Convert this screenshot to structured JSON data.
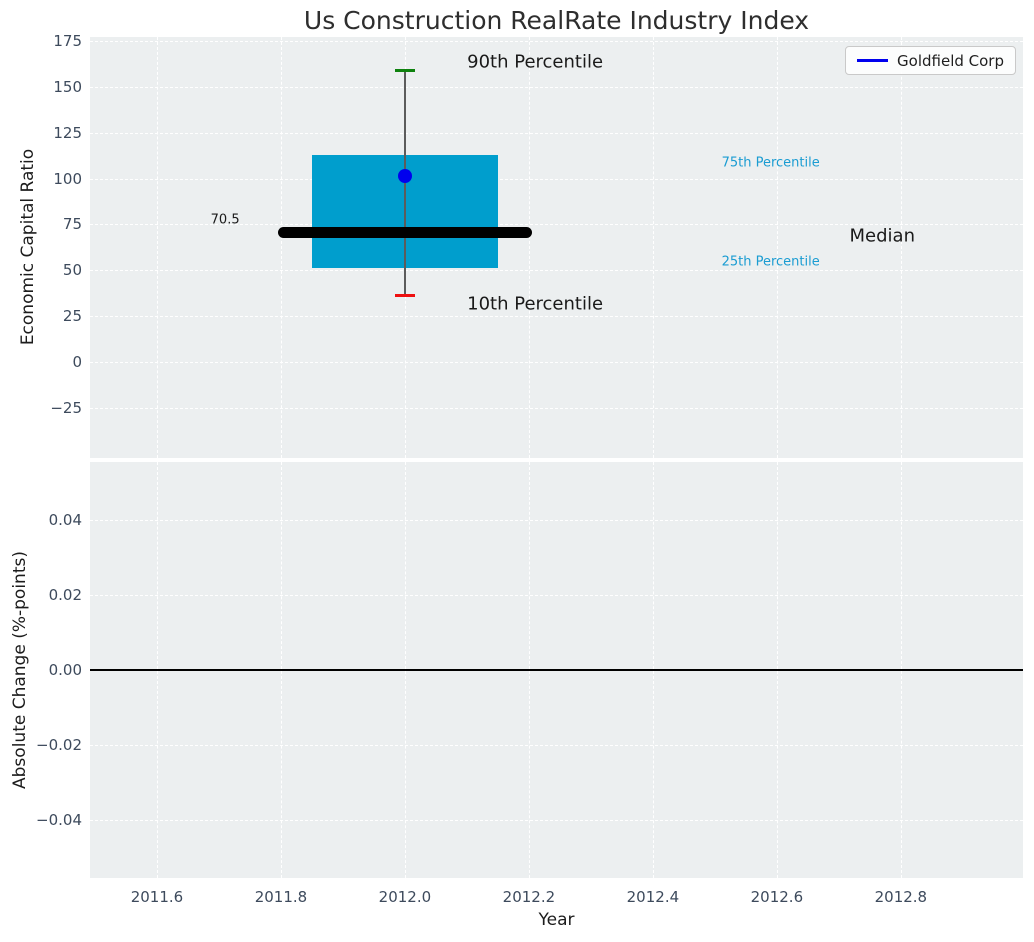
{
  "title": "Us Construction RealRate Industry Index",
  "legend": {
    "label": "Goldfield Corp",
    "line_color": "#0000ee"
  },
  "colors": {
    "figure_bg": "#ffffff",
    "axes_bg": "#eceff0",
    "grid": "#ffffff",
    "box_fill": "#009ecd",
    "median_line": "#000000",
    "whisker_line": "#5c5c5c",
    "cap_90th": "#0e820e",
    "cap_10th": "#ee1010",
    "company_dot": "#0000ee",
    "tick_label": "#3d4a5c",
    "percentile_text": "#1a9cd2",
    "zero_line": "#000000"
  },
  "chart_data": [
    {
      "type": "boxplot",
      "title": "Us Construction RealRate Industry Index",
      "ylabel": "Economic Capital Ratio",
      "legend_entry": "Goldfield Corp",
      "x": 2012.0,
      "box": {
        "p10": 36.5,
        "p25": 51.2,
        "median": 70.5,
        "p75": 112.9,
        "p90": 158.9
      },
      "median_label": "70.5",
      "company_point": {
        "x": 2012.0,
        "y": 101.4,
        "name": "Goldfield Corp"
      },
      "box_x": [
        2011.85,
        2012.15
      ],
      "median_x": [
        2011.795,
        2012.205
      ],
      "cap_x": [
        2011.9835,
        2012.0165
      ],
      "xlim": [
        2011.492,
        2012.997
      ],
      "ylim": [
        -52.3,
        177.2
      ],
      "yticks": [
        175,
        150,
        125,
        100,
        75,
        50,
        25,
        0,
        -25
      ],
      "ytick_labels": [
        "175",
        "150",
        "125",
        "100",
        "75",
        "50",
        "25",
        "0",
        "−25"
      ],
      "grid": "white dashed on light gray",
      "annotations": [
        {
          "text": "90th Percentile",
          "x": 2012.21,
          "y": 163.5,
          "color": "#1a1a1a",
          "size": 18
        },
        {
          "text": "10th Percentile",
          "x": 2012.21,
          "y": 31.6,
          "color": "#1a1a1a",
          "size": 18
        },
        {
          "text": "75th Percentile",
          "x": 2012.59,
          "y": 108.5,
          "color": "#1a9cd2",
          "size": 13
        },
        {
          "text": "25th Percentile",
          "x": 2012.59,
          "y": 54.5,
          "color": "#1a9cd2",
          "size": 13
        },
        {
          "text": "Median",
          "x": 2012.77,
          "y": 68.7,
          "color": "#1a1a1a",
          "size": 18
        },
        {
          "text": "70.5",
          "x": 2011.71,
          "y": 77.4,
          "color": "#1a1a1a",
          "size": 13
        }
      ]
    },
    {
      "type": "line",
      "ylabel": "Absolute Change (%-points)",
      "xlabel": "Year",
      "xlim": [
        2011.492,
        2012.997
      ],
      "ylim": [
        -0.0555,
        0.0555
      ],
      "yticks": [
        0.04,
        0.02,
        0.0,
        -0.02,
        -0.04
      ],
      "ytick_labels": [
        "0.04",
        "0.02",
        "0.00",
        "−0.02",
        "−0.04"
      ],
      "xticks": [
        2011.6,
        2011.8,
        2012.0,
        2012.2,
        2012.4,
        2012.6,
        2012.8
      ],
      "xtick_labels": [
        "2011.6",
        "2011.8",
        "2012.0",
        "2012.2",
        "2012.4",
        "2012.6",
        "2012.8"
      ],
      "zero_line": 0.0,
      "grid": "white dashed on light gray"
    }
  ]
}
